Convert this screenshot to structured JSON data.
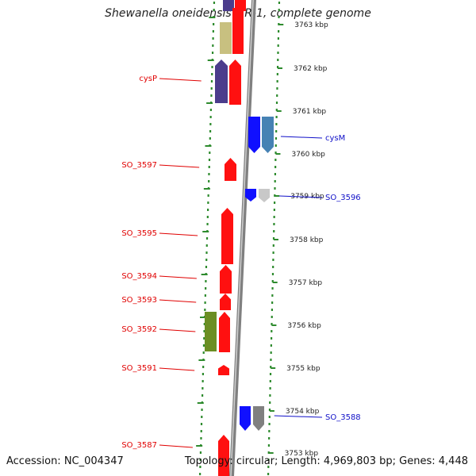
{
  "title": "Shewanella oneidensis MR-1, complete genome",
  "accession": "Accession: NC_004347",
  "summary": "Topology: circular; Length: 4,969,803 bp; Genes: 4,448",
  "kbp_ticks": [
    {
      "label": "3763 kbp",
      "pos": 31
    },
    {
      "label": "3762 kbp",
      "pos": 86
    },
    {
      "label": "3761 kbp",
      "pos": 140
    },
    {
      "label": "3760 kbp",
      "pos": 194
    },
    {
      "label": "3759 kbp",
      "pos": 247
    },
    {
      "label": "3758 kbp",
      "pos": 302
    },
    {
      "label": "3757 kbp",
      "pos": 356
    },
    {
      "label": "3756 kbp",
      "pos": 410
    },
    {
      "label": "3755 kbp",
      "pos": 464
    },
    {
      "label": "3754 kbp",
      "pos": 518
    },
    {
      "label": "3753 kbp",
      "pos": 571
    }
  ],
  "left_labels": [
    {
      "name": "cysP",
      "pos": 99
    },
    {
      "name": "SO_3597",
      "pos": 208
    },
    {
      "name": "SO_3595",
      "pos": 294
    },
    {
      "name": "SO_3594",
      "pos": 348
    },
    {
      "name": "SO_3593",
      "pos": 378
    },
    {
      "name": "SO_3592",
      "pos": 415
    },
    {
      "name": "SO_3591",
      "pos": 464
    },
    {
      "name": "SO_3587",
      "pos": 561
    }
  ],
  "right_labels": [
    {
      "name": "cysM",
      "pos": 174
    },
    {
      "name": "SO_3596",
      "pos": 249
    },
    {
      "name": "SO_3588",
      "pos": 526
    }
  ],
  "colors": {
    "forward_gene": "#ff1010",
    "reverse_gene": "#1010ff",
    "olive_gene": "#c8c080",
    "purple_gene": "#4b3c8c",
    "green_gene": "#6b8e23",
    "steel_gene": "#4682b4",
    "gray_gene": "#808080",
    "light_gray_gene": "#c8c8c8",
    "backbone": "#909090",
    "tick_dots": "#2e8b2e"
  }
}
